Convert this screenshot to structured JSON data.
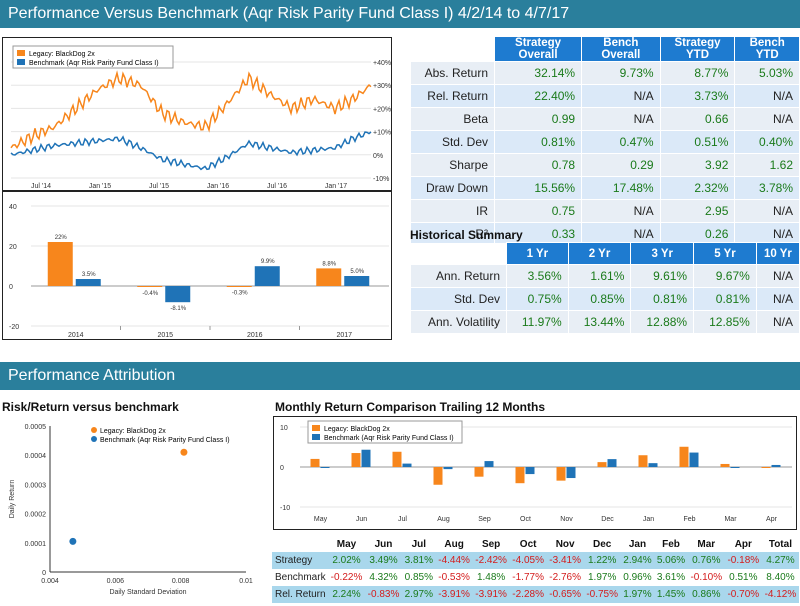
{
  "header": {
    "title": "Performance Versus Benchmark (Aqr Risk Parity Fund Class I) 4/2/14 to 4/7/17",
    "attribution": "Performance Attribution"
  },
  "colors": {
    "strategy": "#f7861c",
    "benchmark": "#1f73b7",
    "header": "#2a7f9c",
    "table_head": "#1e7bd0"
  },
  "legend": {
    "strategy": "Legacy: BlackDog 2x",
    "benchmark": "Benchmark (Aqr Risk Parity Fund Class I)"
  },
  "stats": {
    "headers": [
      "Strategy Overall",
      "Bench Overall",
      "Strategy YTD",
      "Bench YTD"
    ],
    "rows": [
      {
        "label": "Abs. Return",
        "values": [
          "32.14%",
          "9.73%",
          "8.77%",
          "5.03%"
        ]
      },
      {
        "label": "Rel. Return",
        "values": [
          "22.40%",
          "N/A",
          "3.73%",
          "N/A"
        ]
      },
      {
        "label": "Beta",
        "values": [
          "0.99",
          "N/A",
          "0.66",
          "N/A"
        ]
      },
      {
        "label": "Std. Dev",
        "values": [
          "0.81%",
          "0.47%",
          "0.51%",
          "0.40%"
        ]
      },
      {
        "label": "Sharpe",
        "values": [
          "0.78",
          "0.29",
          "3.92",
          "1.62"
        ]
      },
      {
        "label": "Draw Down",
        "values": [
          "15.56%",
          "17.48%",
          "2.32%",
          "3.78%"
        ]
      },
      {
        "label": "IR",
        "values": [
          "0.75",
          "N/A",
          "2.95",
          "N/A"
        ]
      },
      {
        "label": "R²",
        "values": [
          "0.33",
          "N/A",
          "0.26",
          "N/A"
        ]
      }
    ]
  },
  "historical": {
    "title": "Historical Summary",
    "headers": [
      "1 Yr",
      "2 Yr",
      "3 Yr",
      "5 Yr",
      "10 Yr"
    ],
    "rows": [
      {
        "label": "Ann. Return",
        "values": [
          "3.56%",
          "1.61%",
          "9.61%",
          "9.67%",
          "N/A"
        ]
      },
      {
        "label": "Std. Dev",
        "values": [
          "0.75%",
          "0.85%",
          "0.81%",
          "0.81%",
          "N/A"
        ]
      },
      {
        "label": "Ann. Volatility",
        "values": [
          "11.97%",
          "13.44%",
          "12.88%",
          "12.85%",
          "N/A"
        ]
      }
    ]
  },
  "risk_title": "Risk/Return versus benchmark",
  "monthly_title": "Monthly Return Comparison Trailing 12 Months",
  "monthly_table": {
    "headers": [
      "May",
      "Jun",
      "Jul",
      "Aug",
      "Sep",
      "Oct",
      "Nov",
      "Dec",
      "Jan",
      "Feb",
      "Mar",
      "Apr",
      "Total"
    ],
    "rows": [
      {
        "label": "Strategy",
        "values": [
          "2.02%",
          "3.49%",
          "3.81%",
          "-4.44%",
          "-2.42%",
          "-4.05%",
          "-3.41%",
          "1.22%",
          "2.94%",
          "5.06%",
          "0.76%",
          "-0.18%",
          "4.27%"
        ]
      },
      {
        "label": "Benchmark",
        "values": [
          "-0.22%",
          "4.32%",
          "0.85%",
          "-0.53%",
          "1.48%",
          "-1.77%",
          "-2.76%",
          "1.97%",
          "0.96%",
          "3.61%",
          "-0.10%",
          "0.51%",
          "8.40%"
        ]
      },
      {
        "label": "Rel. Return",
        "values": [
          "2.24%",
          "-0.83%",
          "2.97%",
          "-3.91%",
          "-3.91%",
          "-2.28%",
          "-0.65%",
          "-0.75%",
          "1.97%",
          "1.45%",
          "0.86%",
          "-0.70%",
          "-4.12%"
        ]
      }
    ]
  },
  "chart_data": [
    {
      "type": "line",
      "x_ticks": [
        "Jul '14",
        "Jan '15",
        "Jul '15",
        "Jan '16",
        "Jul '16",
        "Jan '17"
      ],
      "y_ticks": [
        "+40%",
        "+30%",
        "+20%",
        "+10%",
        "0%",
        "-10%"
      ],
      "ylim": [
        -10,
        40
      ],
      "series": [
        {
          "name": "Legacy: BlackDog 2x",
          "x": [
            0,
            0.06,
            0.12,
            0.18,
            0.24,
            0.3,
            0.36,
            0.42,
            0.48,
            0.54,
            0.6,
            0.66,
            0.72,
            0.78,
            0.84,
            0.9,
            0.95,
            1.0
          ],
          "values": [
            3,
            8,
            12,
            20,
            28,
            33,
            30,
            18,
            14,
            12,
            22,
            33,
            26,
            20,
            24,
            20,
            24,
            30
          ]
        },
        {
          "name": "Benchmark (Aqr Risk Parity Fund Class I)",
          "x": [
            0,
            0.06,
            0.12,
            0.18,
            0.24,
            0.3,
            0.36,
            0.42,
            0.48,
            0.54,
            0.6,
            0.66,
            0.72,
            0.78,
            0.84,
            0.9,
            0.95,
            1.0
          ],
          "values": [
            0,
            2,
            4,
            5,
            6,
            7,
            3,
            -2,
            -4,
            -6,
            -1,
            5,
            3,
            1,
            2,
            3,
            7,
            10
          ]
        }
      ]
    },
    {
      "type": "bar",
      "categories": [
        "2014",
        "2015",
        "2016",
        "2017"
      ],
      "ylim": [
        -20,
        40
      ],
      "y_ticks": [
        "40",
        "20",
        "0",
        "-20"
      ],
      "series": [
        {
          "name": "Legacy: BlackDog 2x",
          "values": [
            22,
            -0.4,
            -0.3,
            8.8
          ],
          "labels": [
            "22%",
            "-0.4%",
            "-0.3%",
            "8.8%"
          ]
        },
        {
          "name": "Benchmark (Aqr Risk Parity Fund Class I)",
          "values": [
            3.5,
            -8.1,
            9.9,
            5.0
          ],
          "labels": [
            "3.5%",
            "-8.1%",
            "9.9%",
            "5.0%"
          ]
        }
      ]
    },
    {
      "type": "scatter",
      "xlabel": "Daily Standard Deviation",
      "ylabel": "Daily Return",
      "xlim": [
        0.004,
        0.01
      ],
      "ylim": [
        0,
        0.0005
      ],
      "x_ticks": [
        "0.004",
        "0.006",
        "0.008",
        "0.01"
      ],
      "y_ticks": [
        "0.0005",
        "0.0004",
        "0.0003",
        "0.0002",
        "0.0001",
        "0"
      ],
      "series": [
        {
          "name": "Legacy: BlackDog 2x",
          "x": [
            0.0081
          ],
          "values": [
            0.00041
          ]
        },
        {
          "name": "Benchmark (Aqr Risk Parity Fund Class I)",
          "x": [
            0.0047
          ],
          "values": [
            0.000105
          ]
        }
      ]
    },
    {
      "type": "bar",
      "categories": [
        "May",
        "Jun",
        "Jul",
        "Aug",
        "Sep",
        "Oct",
        "Nov",
        "Dec",
        "Jan",
        "Feb",
        "Mar",
        "Apr"
      ],
      "ylim": [
        -10,
        10
      ],
      "y_ticks": [
        "10",
        "0",
        "-10"
      ],
      "series": [
        {
          "name": "Legacy: BlackDog 2x",
          "values": [
            2.02,
            3.49,
            3.81,
            -4.44,
            -2.42,
            -4.05,
            -3.41,
            1.22,
            2.94,
            5.06,
            0.76,
            -0.18
          ]
        },
        {
          "name": "Benchmark (Aqr Risk Parity Fund Class I)",
          "values": [
            -0.22,
            4.32,
            0.85,
            -0.53,
            1.48,
            -1.77,
            -2.76,
            1.97,
            0.96,
            3.61,
            -0.1,
            0.51
          ]
        }
      ]
    }
  ]
}
